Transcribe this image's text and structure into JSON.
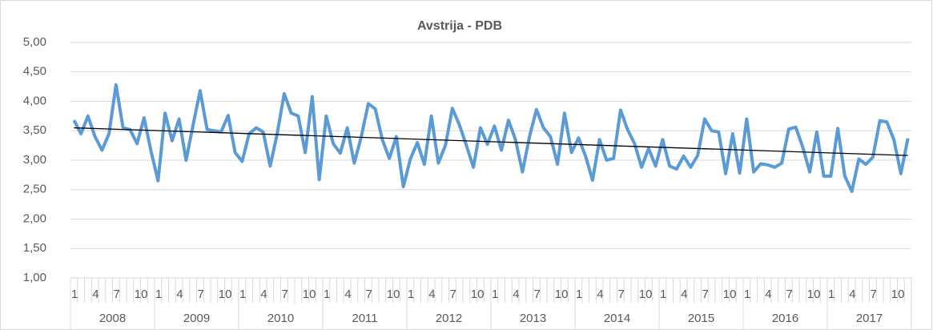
{
  "chart_data": {
    "type": "line",
    "title": "Avstrija - PDB",
    "categories": [
      "1",
      null,
      null,
      "4",
      null,
      null,
      "7",
      null,
      null,
      "10",
      null,
      null,
      "1",
      null,
      null,
      "4",
      null,
      null,
      "7",
      null,
      null,
      "10",
      null,
      null,
      "1",
      null,
      null,
      "4",
      null,
      null,
      "7",
      null,
      null,
      "10",
      null,
      null,
      "1",
      null,
      null,
      "4",
      null,
      null,
      "7",
      null,
      null,
      "10",
      null,
      null,
      "1",
      null,
      null,
      "4",
      null,
      null,
      "7",
      null,
      null,
      "10",
      null,
      null,
      "1",
      null,
      null,
      "4",
      null,
      null,
      "7",
      null,
      null,
      "10",
      null,
      null,
      "1",
      null,
      null,
      "4",
      null,
      null,
      "7",
      null,
      null,
      "10",
      null,
      null,
      "1",
      null,
      null,
      "4",
      null,
      null,
      "7",
      null,
      null,
      "10",
      null,
      null,
      "1",
      null,
      null,
      "4",
      null,
      null,
      "7",
      null,
      null,
      "10",
      null,
      null,
      "1",
      null,
      null,
      "4",
      null,
      null,
      "7",
      null,
      null,
      "10",
      null,
      null
    ],
    "years": [
      "2008",
      "2009",
      "2010",
      "2011",
      "2012",
      "2013",
      "2014",
      "2015",
      "2016",
      "2017"
    ],
    "series": [
      {
        "color": "#5b9bd5",
        "values": [
          3.68,
          3.45,
          3.75,
          3.4,
          3.17,
          3.45,
          4.28,
          3.55,
          3.52,
          3.28,
          3.72,
          3.15,
          2.65,
          3.8,
          3.33,
          3.7,
          3.0,
          3.6,
          4.18,
          3.52,
          3.5,
          3.48,
          3.76,
          3.13,
          2.98,
          3.45,
          3.55,
          3.48,
          2.9,
          3.45,
          4.13,
          3.8,
          3.75,
          3.13,
          4.08,
          2.67,
          3.75,
          3.28,
          3.12,
          3.55,
          2.95,
          3.4,
          3.96,
          3.87,
          3.35,
          3.03,
          3.4,
          2.55,
          3.02,
          3.3,
          2.93,
          3.75,
          2.95,
          3.25,
          3.88,
          3.6,
          3.25,
          2.88,
          3.55,
          3.27,
          3.58,
          3.17,
          3.68,
          3.35,
          2.8,
          3.4,
          3.86,
          3.55,
          3.4,
          2.93,
          3.8,
          3.13,
          3.38,
          3.07,
          2.66,
          3.35,
          3.0,
          3.03,
          3.85,
          3.52,
          3.28,
          2.88,
          3.2,
          2.9,
          3.35,
          2.9,
          2.85,
          3.07,
          2.88,
          3.08,
          3.7,
          3.5,
          3.48,
          2.77,
          3.45,
          2.78,
          3.7,
          2.8,
          2.94,
          2.92,
          2.88,
          2.95,
          3.53,
          3.56,
          3.22,
          2.8,
          3.48,
          2.73,
          2.73,
          3.54,
          2.73,
          2.47,
          3.02,
          2.93,
          3.05,
          3.67,
          3.65,
          3.35,
          2.77,
          3.37
        ]
      }
    ],
    "trendline": {
      "color": "#000000",
      "start": 3.55,
      "end": 3.08
    },
    "ylim": [
      1,
      5
    ],
    "yticks": [
      {
        "value": 1,
        "label": "1,00"
      },
      {
        "value": 1.5,
        "label": "1,50"
      },
      {
        "value": 2,
        "label": "2,00"
      },
      {
        "value": 2.5,
        "label": "2,50"
      },
      {
        "value": 3,
        "label": "3,00"
      },
      {
        "value": 3.5,
        "label": "3,50"
      },
      {
        "value": 4,
        "label": "4,00"
      },
      {
        "value": 4.5,
        "label": "4,50"
      },
      {
        "value": 5,
        "label": "5,00"
      }
    ],
    "grid": true
  }
}
